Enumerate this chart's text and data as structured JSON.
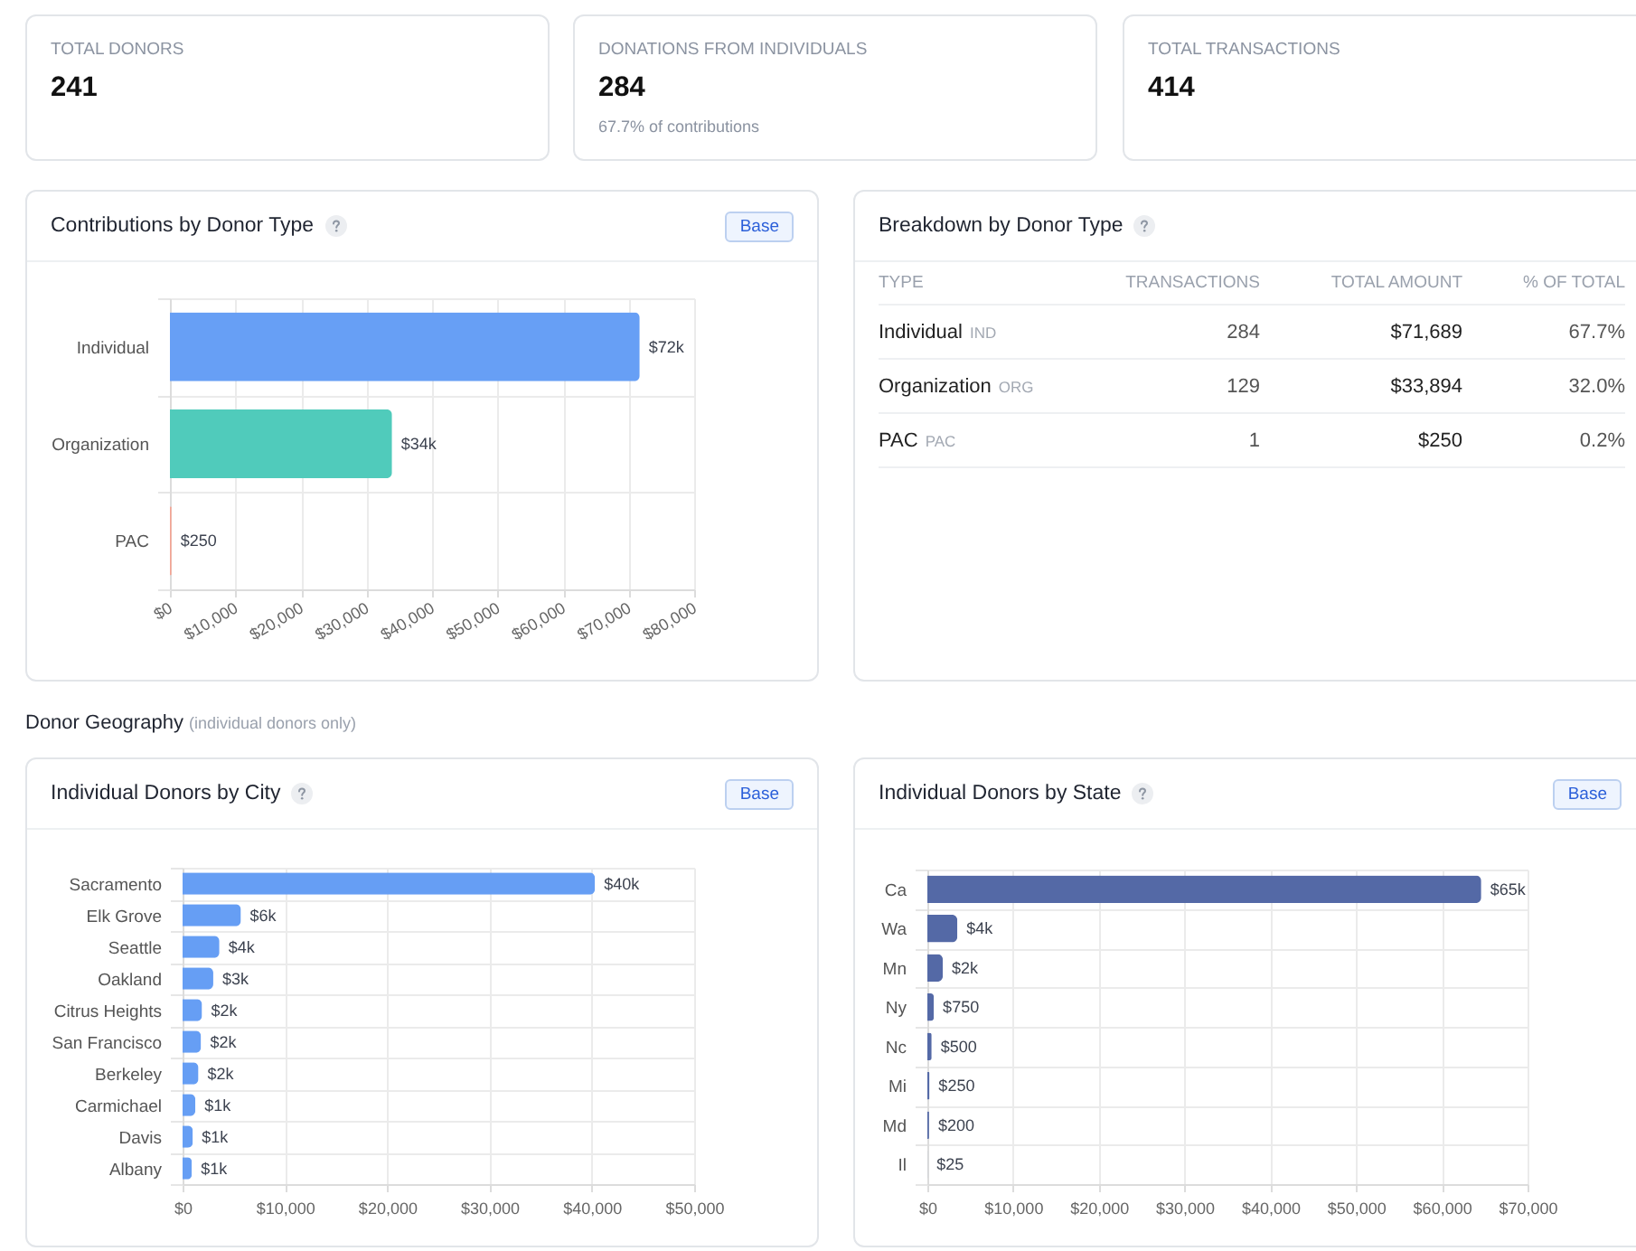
{
  "chart_data": [
    {
      "type": "other",
      "title": "TOTAL DONORS",
      "values": [
        241
      ],
      "data_labels": true
    },
    {
      "type": "other",
      "title": "DONATIONS FROM INDIVIDUALS",
      "subtitle": "67.7% of contributions",
      "values": [
        284
      ],
      "data_labels": true
    },
    {
      "type": "other",
      "title": "TOTAL TRANSACTIONS",
      "values": [
        414
      ],
      "data_labels": true
    },
    {
      "type": "bar",
      "orientation": "horizontal",
      "title": "Contributions by Donor Type",
      "annotations": [
        "Base"
      ],
      "categories": [
        "Individual",
        "Organization",
        "PAC"
      ],
      "values": [
        71689,
        33894,
        250
      ],
      "colors": [
        "#679ff5",
        "#50cbbb",
        "#f4a494"
      ],
      "value_labels": [
        "$72k",
        "$34k",
        "$250"
      ],
      "xlim": [
        0,
        80000
      ],
      "xticks": [
        {
          "value": 0,
          "label": "$0"
        },
        {
          "value": 10000,
          "label": "$10,000"
        },
        {
          "value": 20000,
          "label": "$20,000"
        },
        {
          "value": 30000,
          "label": "$30,000"
        },
        {
          "value": 40000,
          "label": "$40,000"
        },
        {
          "value": 50000,
          "label": "$50,000"
        },
        {
          "value": 60000,
          "label": "$60,000"
        },
        {
          "value": 70000,
          "label": "$70,000"
        },
        {
          "value": 80000,
          "label": "$80,000"
        }
      ],
      "grid": true
    },
    {
      "type": "other",
      "title": "Breakdown by Donor Type",
      "xlabel": "TYPE",
      "categories": [
        "Individual",
        "Organization",
        "PAC"
      ],
      "annotations": [
        "IND",
        "ORG",
        "PAC"
      ],
      "data_labels": true,
      "series": [
        {
          "name": "TRANSACTIONS",
          "values": [
            284,
            129,
            1
          ]
        },
        {
          "name": "TOTAL AMOUNT",
          "values": [
            71689,
            33894,
            250
          ],
          "value_labels": [
            "$71,689",
            "$33,894",
            "$250"
          ]
        },
        {
          "name": "% OF TOTAL",
          "values": [
            67.7,
            32.0,
            0.2
          ],
          "value_labels": [
            "67.7%",
            "32.0%",
            "0.2%"
          ]
        }
      ]
    },
    {
      "type": "other",
      "title": "Donor Geography",
      "subtitle": "(individual donors only)"
    },
    {
      "type": "bar",
      "orientation": "horizontal",
      "title": "Individual Donors by City",
      "annotations": [
        "Base"
      ],
      "categories": [
        "Sacramento",
        "Elk Grove",
        "Seattle",
        "Oakland",
        "Citrus Heights",
        "San Francisco",
        "Berkeley",
        "Carmichael",
        "Davis",
        "Albany"
      ],
      "values": [
        40300,
        5700,
        3600,
        3000,
        1900,
        1800,
        1550,
        1250,
        1000,
        900
      ],
      "color": "#669ef4",
      "value_labels": [
        "$40k",
        "$6k",
        "$4k",
        "$3k",
        "$2k",
        "$2k",
        "$2k",
        "$1k",
        "$1k",
        "$1k"
      ],
      "xlim": [
        0,
        50000
      ],
      "xticks": [
        {
          "value": 0,
          "label": "$0"
        },
        {
          "value": 10000,
          "label": "$10,000"
        },
        {
          "value": 20000,
          "label": "$20,000"
        },
        {
          "value": 30000,
          "label": "$30,000"
        },
        {
          "value": 40000,
          "label": "$40,000"
        },
        {
          "value": 50000,
          "label": "$50,000"
        }
      ],
      "grid": true
    },
    {
      "type": "bar",
      "orientation": "horizontal",
      "title": "Individual Donors by State",
      "annotations": [
        "Base"
      ],
      "categories": [
        "Ca",
        "Wa",
        "Mn",
        "Ny",
        "Nc",
        "Mi",
        "Md",
        "Il"
      ],
      "values": [
        64600,
        3500,
        1800,
        750,
        500,
        250,
        200,
        25
      ],
      "color": "#5469a6",
      "value_labels": [
        "$65k",
        "$4k",
        "$2k",
        "$750",
        "$500",
        "$250",
        "$200",
        "$25"
      ],
      "xlim": [
        0,
        70000
      ],
      "xticks": [
        {
          "value": 0,
          "label": "$0"
        },
        {
          "value": 10000,
          "label": "$10,000"
        },
        {
          "value": 20000,
          "label": "$20,000"
        },
        {
          "value": 30000,
          "label": "$30,000"
        },
        {
          "value": 40000,
          "label": "$40,000"
        },
        {
          "value": 50000,
          "label": "$50,000"
        },
        {
          "value": 60000,
          "label": "$60,000"
        },
        {
          "value": 70000,
          "label": "$70,000"
        }
      ],
      "grid": true
    }
  ]
}
